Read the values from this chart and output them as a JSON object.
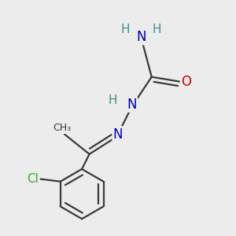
{
  "background_color": "#ececec",
  "atom_colors": {
    "C": "#3a3a3a",
    "N": "#0000bb",
    "O": "#cc0000",
    "H": "#3a9090",
    "Cl": "#33aa33"
  },
  "bond_color": "#3a3a3a",
  "bond_width": 1.6,
  "font_size_main": 12,
  "font_size_h": 11
}
